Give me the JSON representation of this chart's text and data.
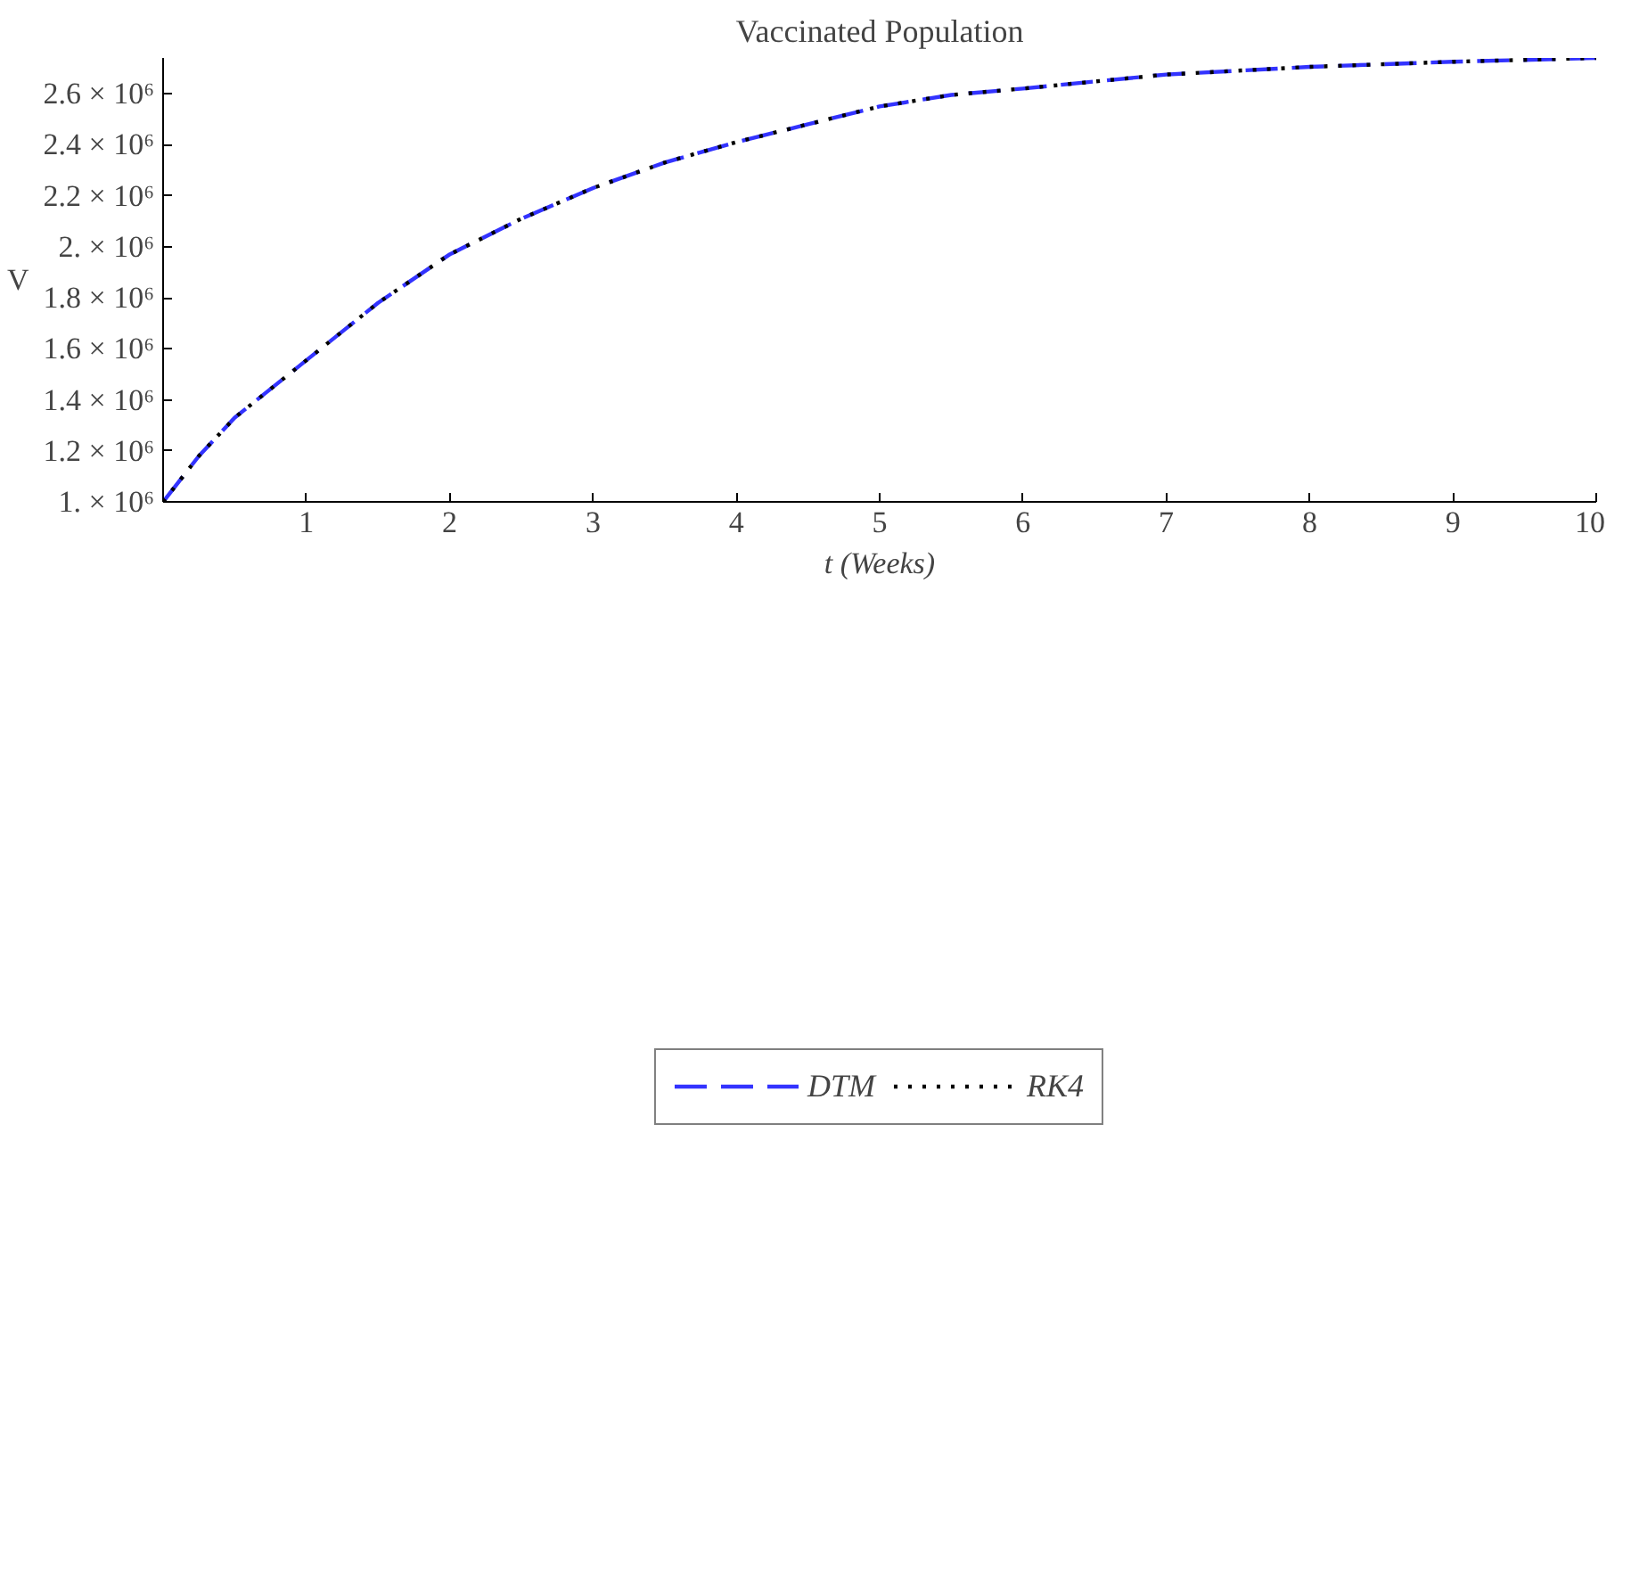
{
  "chart_data": {
    "type": "line",
    "title": "Vaccinated Population",
    "xlabel": "t (Weeks)",
    "ylabel": "V",
    "x": [
      0,
      0.25,
      0.5,
      1,
      1.5,
      2,
      2.5,
      3,
      3.5,
      4,
      4.5,
      5,
      5.5,
      6,
      7,
      8,
      9,
      10
    ],
    "series": [
      {
        "name": "DTM",
        "color": "#3333ff",
        "line_style": "dashed",
        "values": [
          1000000,
          1180000,
          1330000,
          1555000,
          1780000,
          1970000,
          2110000,
          2230000,
          2330000,
          2410000,
          2480000,
          2550000,
          2595000,
          2620000,
          2675000,
          2705000,
          2725000,
          2740000
        ]
      },
      {
        "name": "RK4",
        "color": "#000000",
        "line_style": "dotted",
        "values": [
          1000000,
          1180000,
          1330000,
          1555000,
          1780000,
          1970000,
          2110000,
          2230000,
          2330000,
          2410000,
          2480000,
          2550000,
          2595000,
          2620000,
          2675000,
          2705000,
          2725000,
          2740000
        ]
      }
    ],
    "xlim": [
      0,
      10
    ],
    "ylim": [
      1000000,
      2740000
    ],
    "xticks": [
      1,
      2,
      3,
      4,
      5,
      6,
      7,
      8,
      9,
      10
    ],
    "yticks": [
      {
        "value": 1000000,
        "label": "1. × 10⁶"
      },
      {
        "value": 1200000,
        "label": "1.2 × 10⁶"
      },
      {
        "value": 1400000,
        "label": "1.4 × 10⁶"
      },
      {
        "value": 1600000,
        "label": "1.6 × 10⁶"
      },
      {
        "value": 1800000,
        "label": "1.8 × 10⁶"
      },
      {
        "value": 2000000,
        "label": "2. × 10⁶"
      },
      {
        "value": 2200000,
        "label": "2.2 × 10⁶"
      },
      {
        "value": 2400000,
        "label": "2.4 × 10⁶"
      },
      {
        "value": 2600000,
        "label": "2.6 × 10⁶"
      }
    ],
    "legend": "bottom",
    "grid": false,
    "marker": "none"
  }
}
